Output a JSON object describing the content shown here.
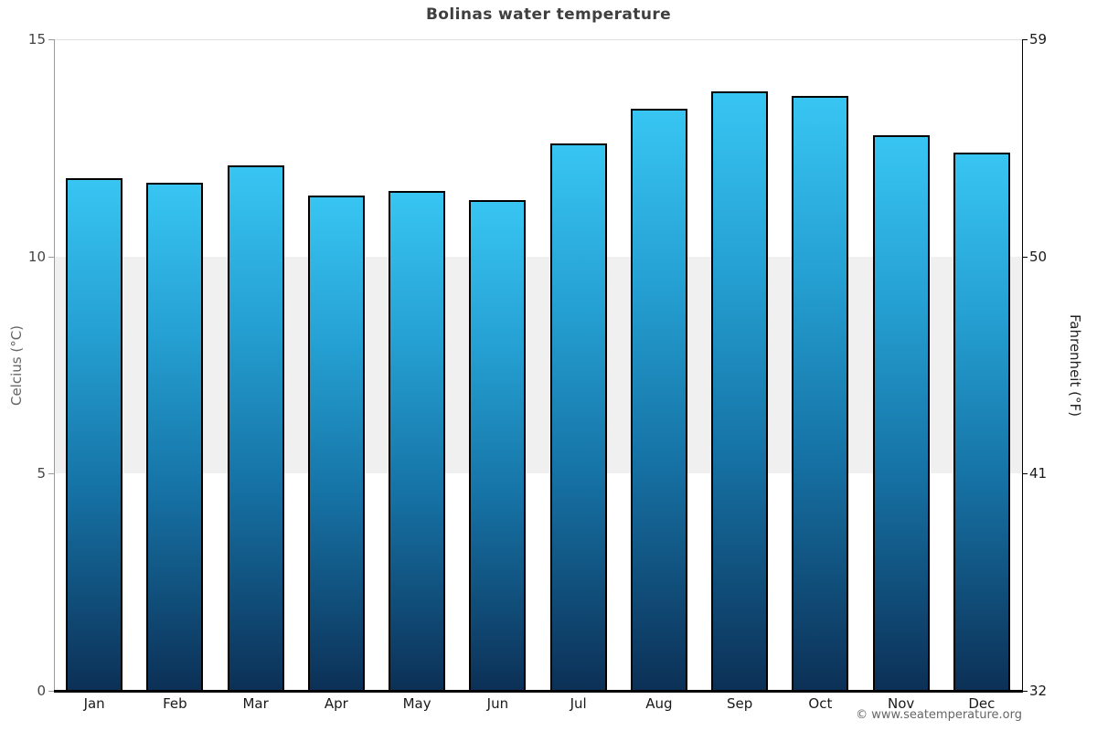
{
  "title": "Bolinas water temperature",
  "copyright": "© www.seatemperature.org",
  "axes": {
    "left_label": "Celcius (°C)",
    "right_label": "Fahrenheit (°F)"
  },
  "chart_data": {
    "type": "bar",
    "title": "Bolinas water temperature",
    "categories": [
      "Jan",
      "Feb",
      "Mar",
      "Apr",
      "May",
      "Jun",
      "Jul",
      "Aug",
      "Sep",
      "Oct",
      "Nov",
      "Dec"
    ],
    "values": [
      11.8,
      11.7,
      12.1,
      11.4,
      11.5,
      11.3,
      12.6,
      13.4,
      13.8,
      13.7,
      12.8,
      12.4
    ],
    "xlabel": "",
    "ylabel": "Celcius (°C)",
    "ylabel_right": "Fahrenheit (°F)",
    "ylim": [
      0,
      15
    ],
    "yticks_celsius": [
      0,
      5,
      10,
      15
    ],
    "yticks_fahrenheit": [
      32,
      41,
      50,
      59
    ],
    "band": {
      "from": 5,
      "to": 10,
      "color": "#f0f0f0"
    },
    "grid": "top gridline only, gray band 5-10",
    "legend": "none",
    "bar_gradient_top": "#38c5f2",
    "bar_gradient_bottom": "#0c3056",
    "bar_border_color": "#000000"
  }
}
